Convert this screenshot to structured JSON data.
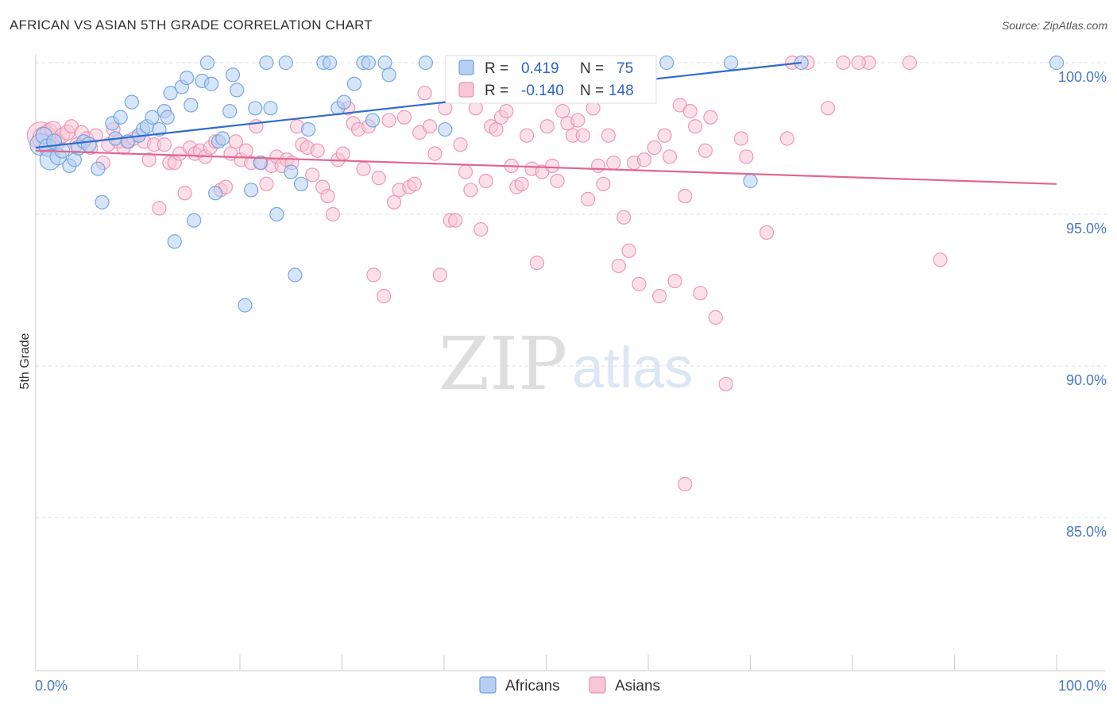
{
  "title": "AFRICAN VS ASIAN 5TH GRADE CORRELATION CHART",
  "source": "Source: ZipAtlas.com",
  "watermark": {
    "left": "ZIP",
    "right": "atlas"
  },
  "colors": {
    "africans": "#6a9fe0",
    "africans_fill": "#b7d0f2",
    "africans_line": "#2f6ccc",
    "asians": "#eb8fb0",
    "asians_fill": "#f7c6d7",
    "asians_line": "#e0668f",
    "tick": "#4a78c8",
    "grid": "#dddddd"
  },
  "legend_top": {
    "rows": [
      {
        "r_label": "R =",
        "r_value": "0.419",
        "n_label": "N =",
        "n_value": "75"
      },
      {
        "r_label": "R =",
        "r_value": "-0.140",
        "n_label": "N =",
        "n_value": "148"
      }
    ]
  },
  "chart_data": {
    "type": "scatter",
    "title": "AFRICAN VS ASIAN 5TH GRADE CORRELATION CHART",
    "xlabel": "",
    "ylabel": "5th Grade",
    "xlim": [
      0,
      100
    ],
    "ylim": [
      80,
      100.5
    ],
    "x_tick_labels": [
      "0.0%",
      "100.0%"
    ],
    "y_ticks": [
      {
        "value": 100,
        "label": "100.0%"
      },
      {
        "value": 95,
        "label": "95.0%"
      },
      {
        "value": 90,
        "label": "90.0%"
      },
      {
        "value": 85,
        "label": "85.0%"
      }
    ],
    "grid": true,
    "legend_position": "bottom-center",
    "series": [
      {
        "name": "Africans",
        "trend": {
          "x": [
            0,
            75
          ],
          "y": [
            97.2,
            100.0
          ]
        },
        "points": [
          [
            0.5,
            97.3
          ],
          [
            0.8,
            97.6
          ],
          [
            1.2,
            97.2
          ],
          [
            1.4,
            96.8
          ],
          [
            1.8,
            97.4
          ],
          [
            2.2,
            96.9
          ],
          [
            2.6,
            97.1
          ],
          [
            3.3,
            96.6
          ],
          [
            3.8,
            96.8
          ],
          [
            4.2,
            97.2
          ],
          [
            4.7,
            97.4
          ],
          [
            5.2,
            97.3
          ],
          [
            6.1,
            96.5
          ],
          [
            6.5,
            95.4
          ],
          [
            7.5,
            98.0
          ],
          [
            7.8,
            97.5
          ],
          [
            8.3,
            98.2
          ],
          [
            9.0,
            97.4
          ],
          [
            9.4,
            98.7
          ],
          [
            10.1,
            97.6
          ],
          [
            10.5,
            97.8
          ],
          [
            10.9,
            97.9
          ],
          [
            11.4,
            98.2
          ],
          [
            12.1,
            97.8
          ],
          [
            12.6,
            98.4
          ],
          [
            12.9,
            98.2
          ],
          [
            13.2,
            99.0
          ],
          [
            13.6,
            94.1
          ],
          [
            14.3,
            99.2
          ],
          [
            14.8,
            99.5
          ],
          [
            15.2,
            98.6
          ],
          [
            15.5,
            94.8
          ],
          [
            16.3,
            99.4
          ],
          [
            16.8,
            100.0
          ],
          [
            17.2,
            99.3
          ],
          [
            17.6,
            95.7
          ],
          [
            17.9,
            97.4
          ],
          [
            18.3,
            97.5
          ],
          [
            19.0,
            98.4
          ],
          [
            19.3,
            99.6
          ],
          [
            19.7,
            99.1
          ],
          [
            20.5,
            92.0
          ],
          [
            21.1,
            95.8
          ],
          [
            21.5,
            98.5
          ],
          [
            22.0,
            96.7
          ],
          [
            22.6,
            100.0
          ],
          [
            23.0,
            98.5
          ],
          [
            23.6,
            95.0
          ],
          [
            24.5,
            100.0
          ],
          [
            25.0,
            96.4
          ],
          [
            25.4,
            93.0
          ],
          [
            26.0,
            96.0
          ],
          [
            26.7,
            97.8
          ],
          [
            28.2,
            100.0
          ],
          [
            28.8,
            100.0
          ],
          [
            29.6,
            98.5
          ],
          [
            30.2,
            98.7
          ],
          [
            31.2,
            99.3
          ],
          [
            32.1,
            100.0
          ],
          [
            32.6,
            100.0
          ],
          [
            33.0,
            98.1
          ],
          [
            34.2,
            100.0
          ],
          [
            34.6,
            99.6
          ],
          [
            38.2,
            100.0
          ],
          [
            40.1,
            97.8
          ],
          [
            44.5,
            100.0
          ],
          [
            49.2,
            100.0
          ],
          [
            51.0,
            99.0
          ],
          [
            53.5,
            100.0
          ],
          [
            55.0,
            100.0
          ],
          [
            61.8,
            100.0
          ],
          [
            68.1,
            100.0
          ],
          [
            70.0,
            96.1
          ],
          [
            75.0,
            100.0
          ],
          [
            100.0,
            100.0
          ]
        ],
        "point_sizes": [
          1.6,
          1.2,
          1.3,
          1.5,
          1.1,
          1.2,
          1.1,
          1.0,
          1.0,
          1.1,
          1.0,
          1.1,
          1.0,
          1.0,
          1.0,
          1.0,
          1.0,
          1.0,
          1.0,
          1.0,
          1.0,
          1.0,
          1.0,
          1.0,
          1.0,
          1.0,
          1.0,
          1.0,
          1.0,
          1.0,
          1.0,
          1.0,
          1.0,
          1.0,
          1.0,
          1.0,
          1.0,
          1.0,
          1.0,
          1.0,
          1.0,
          1.0,
          1.0,
          1.0,
          1.0,
          1.0,
          1.0,
          1.0,
          1.0,
          1.0,
          1.0,
          1.0,
          1.0,
          1.0,
          1.0,
          1.0,
          1.0,
          1.0,
          1.0,
          1.0,
          1.0,
          1.0,
          1.0,
          1.0,
          1.0,
          1.0,
          1.0,
          1.0,
          1.0,
          1.0,
          1.0,
          1.0,
          1.0,
          1.0,
          1.0
        ]
      },
      {
        "name": "Asians",
        "trend": {
          "x": [
            0,
            100
          ],
          "y": [
            97.1,
            96.0
          ]
        },
        "points": [
          [
            0.5,
            97.6
          ],
          [
            0.9,
            97.5
          ],
          [
            1.3,
            97.7
          ],
          [
            1.7,
            97.8
          ],
          [
            2.1,
            97.4
          ],
          [
            2.6,
            97.6
          ],
          [
            3.1,
            97.7
          ],
          [
            3.5,
            97.9
          ],
          [
            4.0,
            97.3
          ],
          [
            4.5,
            97.7
          ],
          [
            5.0,
            97.5
          ],
          [
            5.4,
            97.2
          ],
          [
            5.9,
            97.6
          ],
          [
            6.6,
            96.7
          ],
          [
            7.1,
            97.3
          ],
          [
            7.6,
            97.8
          ],
          [
            8.1,
            97.4
          ],
          [
            8.6,
            97.2
          ],
          [
            9.1,
            97.4
          ],
          [
            9.6,
            97.5
          ],
          [
            10.1,
            97.6
          ],
          [
            10.6,
            97.4
          ],
          [
            11.1,
            96.8
          ],
          [
            11.6,
            97.3
          ],
          [
            12.1,
            95.2
          ],
          [
            12.6,
            97.3
          ],
          [
            13.1,
            96.7
          ],
          [
            13.6,
            96.7
          ],
          [
            14.1,
            97.0
          ],
          [
            14.6,
            95.7
          ],
          [
            15.1,
            97.2
          ],
          [
            15.6,
            97.0
          ],
          [
            16.1,
            97.1
          ],
          [
            16.6,
            96.9
          ],
          [
            17.1,
            97.2
          ],
          [
            17.6,
            97.4
          ],
          [
            18.1,
            95.8
          ],
          [
            18.6,
            95.9
          ],
          [
            19.1,
            97.0
          ],
          [
            19.6,
            97.4
          ],
          [
            20.1,
            96.8
          ],
          [
            20.6,
            97.1
          ],
          [
            21.1,
            96.7
          ],
          [
            21.6,
            97.9
          ],
          [
            22.1,
            96.7
          ],
          [
            22.6,
            96.0
          ],
          [
            23.1,
            96.6
          ],
          [
            23.6,
            96.9
          ],
          [
            24.1,
            96.6
          ],
          [
            24.6,
            96.8
          ],
          [
            25.1,
            96.7
          ],
          [
            25.6,
            97.9
          ],
          [
            26.1,
            97.3
          ],
          [
            26.6,
            97.2
          ],
          [
            27.1,
            96.3
          ],
          [
            27.6,
            97.1
          ],
          [
            28.1,
            95.9
          ],
          [
            28.6,
            95.6
          ],
          [
            29.1,
            95.0
          ],
          [
            29.6,
            96.8
          ],
          [
            30.1,
            97.0
          ],
          [
            30.6,
            98.5
          ],
          [
            31.1,
            98.0
          ],
          [
            31.6,
            97.8
          ],
          [
            32.1,
            96.5
          ],
          [
            32.6,
            97.9
          ],
          [
            33.1,
            93.0
          ],
          [
            33.6,
            96.2
          ],
          [
            34.1,
            92.3
          ],
          [
            34.6,
            98.1
          ],
          [
            35.1,
            95.4
          ],
          [
            35.6,
            95.8
          ],
          [
            36.1,
            98.2
          ],
          [
            36.6,
            95.9
          ],
          [
            37.1,
            96.0
          ],
          [
            37.6,
            97.7
          ],
          [
            38.1,
            99.0
          ],
          [
            38.6,
            97.9
          ],
          [
            39.1,
            97.0
          ],
          [
            39.6,
            93.0
          ],
          [
            40.1,
            98.5
          ],
          [
            40.6,
            94.8
          ],
          [
            41.1,
            94.8
          ],
          [
            41.6,
            97.3
          ],
          [
            42.1,
            96.4
          ],
          [
            42.6,
            95.8
          ],
          [
            43.1,
            98.5
          ],
          [
            43.6,
            94.5
          ],
          [
            44.1,
            96.1
          ],
          [
            44.6,
            97.9
          ],
          [
            45.1,
            97.8
          ],
          [
            45.6,
            98.2
          ],
          [
            46.1,
            98.4
          ],
          [
            46.6,
            96.6
          ],
          [
            47.1,
            95.9
          ],
          [
            47.6,
            96.0
          ],
          [
            48.1,
            97.6
          ],
          [
            48.6,
            96.5
          ],
          [
            49.1,
            93.4
          ],
          [
            49.6,
            96.4
          ],
          [
            50.1,
            97.9
          ],
          [
            50.6,
            96.6
          ],
          [
            51.1,
            96.1
          ],
          [
            51.6,
            98.4
          ],
          [
            52.1,
            98.0
          ],
          [
            52.6,
            97.6
          ],
          [
            53.1,
            98.1
          ],
          [
            53.6,
            97.6
          ],
          [
            54.1,
            95.5
          ],
          [
            54.6,
            98.5
          ],
          [
            55.1,
            96.6
          ],
          [
            55.6,
            96.0
          ],
          [
            56.1,
            97.6
          ],
          [
            56.6,
            96.7
          ],
          [
            57.1,
            93.3
          ],
          [
            57.6,
            94.9
          ],
          [
            58.1,
            93.8
          ],
          [
            58.6,
            96.7
          ],
          [
            59.1,
            92.7
          ],
          [
            59.6,
            96.8
          ],
          [
            60.1,
            99.3
          ],
          [
            60.6,
            97.2
          ],
          [
            61.1,
            92.3
          ],
          [
            61.6,
            97.6
          ],
          [
            62.1,
            96.9
          ],
          [
            62.6,
            92.8
          ],
          [
            63.1,
            98.6
          ],
          [
            63.6,
            95.6
          ],
          [
            64.1,
            98.4
          ],
          [
            64.6,
            97.9
          ],
          [
            65.1,
            92.4
          ],
          [
            65.6,
            97.1
          ],
          [
            66.1,
            98.2
          ],
          [
            66.6,
            91.6
          ],
          [
            67.6,
            89.4
          ],
          [
            69.6,
            96.9
          ],
          [
            71.6,
            94.4
          ],
          [
            73.6,
            97.5
          ],
          [
            75.6,
            100.0
          ],
          [
            77.6,
            98.5
          ],
          [
            79.1,
            100.0
          ],
          [
            81.6,
            100.0
          ],
          [
            85.6,
            100.0
          ],
          [
            88.6,
            93.5
          ],
          [
            63.6,
            86.1
          ],
          [
            80.6,
            100.0
          ],
          [
            69.1,
            97.5
          ],
          [
            74.1,
            100.0
          ]
        ],
        "point_sizes": [
          2.0,
          1.8,
          1.3,
          1.2,
          1.2,
          1.1,
          1.1,
          1.0,
          1.0,
          1.0,
          1.0,
          1.0,
          1.0,
          1.0,
          1.0,
          1.0,
          1.0,
          1.0,
          1.0,
          1.0,
          1.0,
          1.0,
          1.0,
          1.0,
          1.0,
          1.0,
          1.0,
          1.0,
          1.0,
          1.0,
          1.0,
          1.0,
          1.0,
          1.0,
          1.0,
          1.0,
          1.0,
          1.0,
          1.0,
          1.0,
          1.0,
          1.0,
          1.0,
          1.0,
          1.0,
          1.0,
          1.0,
          1.0,
          1.0,
          1.0,
          1.0,
          1.0,
          1.0,
          1.0,
          1.0,
          1.0,
          1.0,
          1.0,
          1.0,
          1.0,
          1.0,
          1.0,
          1.0,
          1.0,
          1.0,
          1.0,
          1.0,
          1.0,
          1.0,
          1.0,
          1.0,
          1.0,
          1.0,
          1.0,
          1.0,
          1.0,
          1.0,
          1.0,
          1.0,
          1.0,
          1.0,
          1.0,
          1.0,
          1.0,
          1.0,
          1.0,
          1.0,
          1.0,
          1.0,
          1.0,
          1.0,
          1.0,
          1.0,
          1.0,
          1.0,
          1.0,
          1.0,
          1.0,
          1.0,
          1.0,
          1.0,
          1.0,
          1.0,
          1.0,
          1.0,
          1.0,
          1.0,
          1.0,
          1.0,
          1.0,
          1.0,
          1.0,
          1.0,
          1.0,
          1.0,
          1.0,
          1.0,
          1.0,
          1.0,
          1.0,
          1.0,
          1.0,
          1.0,
          1.0,
          1.0,
          1.0,
          1.0,
          1.0,
          1.0,
          1.0,
          1.0,
          1.0,
          1.0,
          1.0,
          1.0,
          1.0,
          1.0,
          1.0,
          1.0,
          1.0,
          1.0,
          1.0,
          1.0,
          1.0,
          1.0,
          1.0,
          1.0,
          1.0
        ]
      }
    ]
  }
}
